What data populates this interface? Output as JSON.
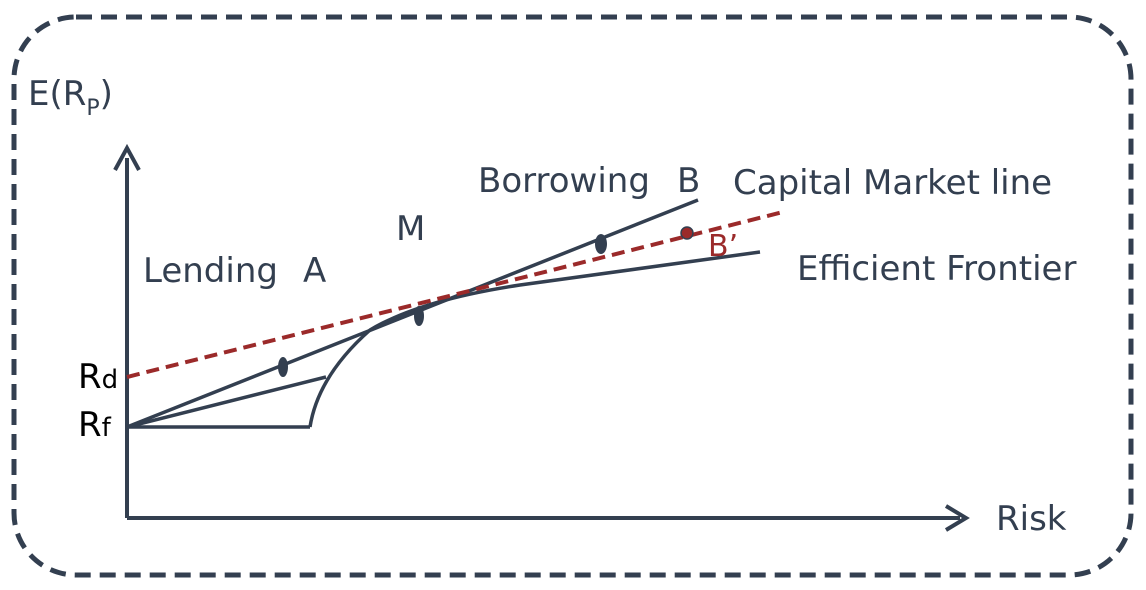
{
  "labels": {
    "y_axis": "E(R",
    "y_axis_sub": "P",
    "y_axis_close": ")",
    "x_axis": "Risk",
    "rd_main": "R",
    "rd_sub": "d",
    "rf_main": "R",
    "rf_sub": "f",
    "lending": "Lending",
    "point_a": "A",
    "point_m": "M",
    "borrowing": "Borrowing",
    "point_b": "B",
    "point_b_prime": "B’",
    "capital_market_line": "Capital Market line",
    "efficient_frontier": "Efficient Frontier"
  },
  "colors": {
    "ink": "#333f50",
    "dashed_line": "#9b2a2a",
    "frame": "#333f50",
    "background": "#ffffff"
  }
}
